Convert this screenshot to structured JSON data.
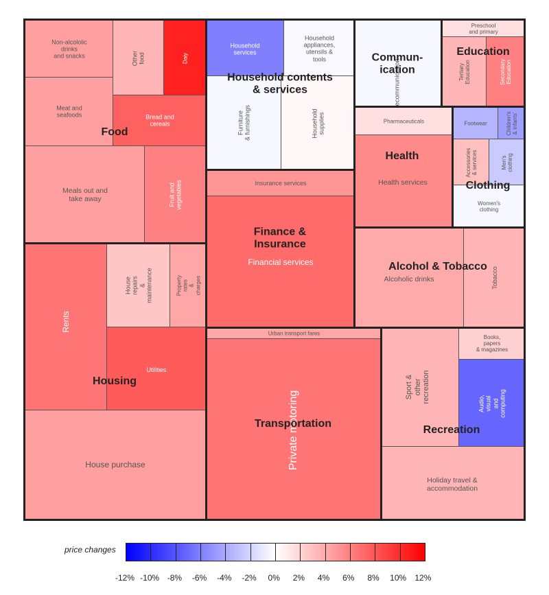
{
  "chart_data": {
    "type": "treemap",
    "legend": {
      "title": "price changes",
      "ticks": [
        "-12%",
        "-10%",
        "-8%",
        "-6%",
        "-4%",
        "-2%",
        "0%",
        "2%",
        "4%",
        "6%",
        "8%",
        "10%",
        "12%"
      ],
      "range": [
        -12,
        12
      ],
      "low_color": "#0000ff",
      "mid_color": "#ffffff",
      "high_color": "#ff0000",
      "placement": "bottom"
    },
    "groups": [
      {
        "name": "Food",
        "children": [
          {
            "label": "Non-alcololic drinks\nand snacks",
            "change": 4.5
          },
          {
            "label": "Meat and seafoods",
            "change": 4.5
          },
          {
            "label": "Other food",
            "change": 3.5
          },
          {
            "label": "Daiy",
            "change": 10.5
          },
          {
            "label": "Bread and cereals",
            "change": 7.5
          },
          {
            "label": "Meals out and\ntake away",
            "change": 4.5
          },
          {
            "label": "Fruit and vegetables",
            "change": 6
          }
        ]
      },
      {
        "name": "Household contents\n& services",
        "children": [
          {
            "label": "Household services",
            "change": -6
          },
          {
            "label": "Household\nappliances,\nutensils & tools",
            "change": -0.3
          },
          {
            "label": "Furniture\n& furnishings",
            "change": -0.4
          },
          {
            "label": "Household supplies",
            "change": 0.4
          }
        ]
      },
      {
        "name": "Finance &\nInsurance",
        "children": [
          {
            "label": "Insurance services",
            "change": 5
          },
          {
            "label": "Financial services",
            "change": 7
          }
        ]
      },
      {
        "name": "Commun-\nication",
        "children": [
          {
            "label": "Telecommunication",
            "change": -0.4
          }
        ]
      },
      {
        "name": "Education",
        "children": [
          {
            "label": "Preschool\nand primary",
            "change": 1.5
          },
          {
            "label": "Tertiary\nEducation",
            "change": 3.5
          },
          {
            "label": "Secondary\nEducation",
            "change": 6
          }
        ]
      },
      {
        "name": "Health",
        "children": [
          {
            "label": "Pharmaceuticals",
            "change": 1.5
          },
          {
            "label": "Health services",
            "change": 5.5
          }
        ]
      },
      {
        "name": "Clothing",
        "children": [
          {
            "label": "Footwear",
            "change": -3.5
          },
          {
            "label": "Children's\n& infants'",
            "change": -4.5
          },
          {
            "label": "Accessories\n& services",
            "change": 3
          },
          {
            "label": "Men's\nclothing",
            "change": -2.5
          },
          {
            "label": "Women's\nclothing",
            "change": -0.4
          }
        ]
      },
      {
        "name": "Alcohol & Tobacco",
        "children": [
          {
            "label": "Alcoholic drinks",
            "change": 4
          },
          {
            "label": "Tobacco",
            "change": 3.5
          }
        ]
      },
      {
        "name": "Housing",
        "children": [
          {
            "label": "Rents",
            "change": 6.5
          },
          {
            "label": "House repairs\n& maintenance",
            "change": 2.7
          },
          {
            "label": "Property rates\n& charges",
            "change": 4.2
          },
          {
            "label": "Utilities",
            "change": 7.7
          },
          {
            "label": "House purchase",
            "change": 4.5
          }
        ]
      },
      {
        "name": "Transportation",
        "children": [
          {
            "label": "Urban transport fares",
            "change": 4.2
          },
          {
            "label": "Private motoring",
            "change": 6.5
          }
        ]
      },
      {
        "name": "Recreation",
        "children": [
          {
            "label": "Sport &\nother recreation",
            "change": 3.5
          },
          {
            "label": "Books, papers\n& magazines",
            "change": 2.2
          },
          {
            "label": "Audio, visual\nand computing",
            "change": -7.2
          },
          {
            "label": "Holiday travel &\naccommodation",
            "change": 3.5
          }
        ]
      }
    ]
  }
}
